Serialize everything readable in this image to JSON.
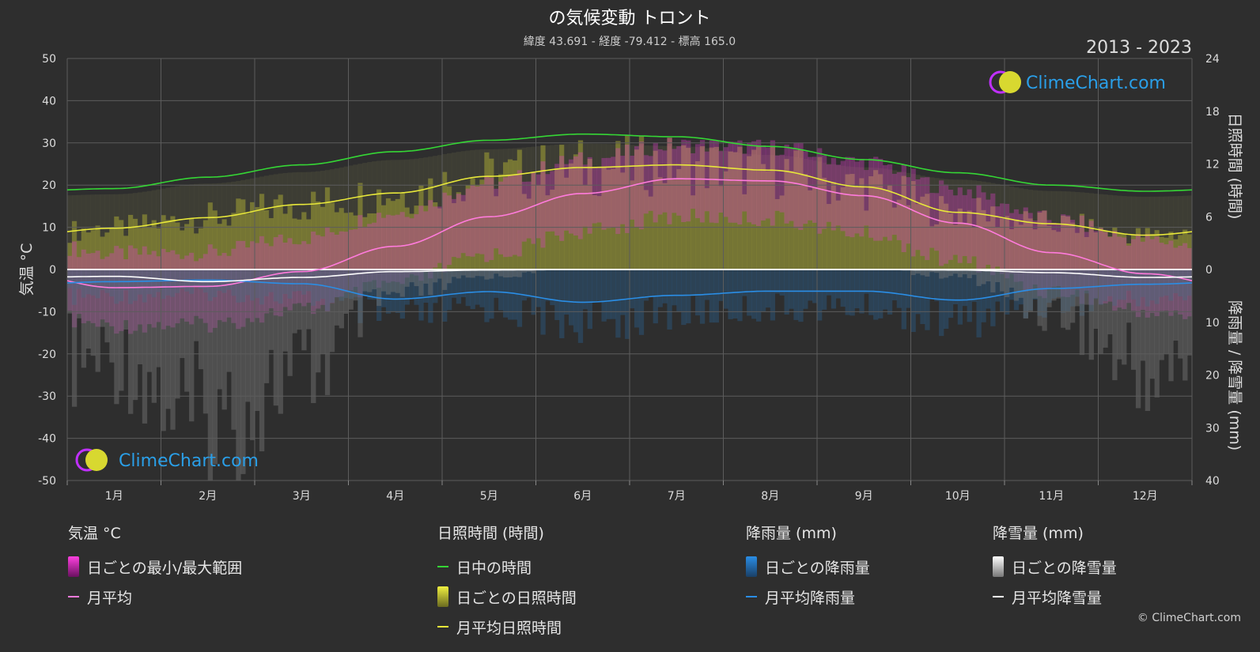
{
  "title": "の気候変動 トロント",
  "subtitle": "緯度 43.691 - 経度 -79.412 - 標高 165.0",
  "year_range": "2013 - 2023",
  "watermark": "ClimeChart.com",
  "copyright": "© ClimeChart.com",
  "colors": {
    "background": "#2e2e2e",
    "daylight": "#35d635",
    "sunshine": "#e8e83a",
    "temperature": "#ff7bdc",
    "temperature_range": "#e040c8",
    "rain": "#2a8ee6",
    "snow": "#ffffff",
    "brand": "#2a9fe8"
  },
  "legend": {
    "temperature": {
      "title": "気温 °C",
      "items": [
        "日ごとの最小/最大範囲",
        "月平均"
      ]
    },
    "sunshine": {
      "title": "日照時間 (時間)",
      "items": [
        "日中の時間",
        "日ごとの日照時間",
        "月平均日照時間"
      ]
    },
    "rain": {
      "title": "降雨量 (mm)",
      "items": [
        "日ごとの降雨量",
        "月平均降雨量"
      ]
    },
    "snow": {
      "title": "降雪量 (mm)",
      "items": [
        "日ごとの降雪量",
        "月平均降雪量"
      ]
    }
  },
  "chart_data": {
    "type": "line",
    "categories": [
      "1月",
      "2月",
      "3月",
      "4月",
      "5月",
      "6月",
      "7月",
      "8月",
      "9月",
      "10月",
      "11月",
      "12月"
    ],
    "y_left": {
      "label": "気温 °C",
      "range": [
        -50,
        50
      ],
      "ticks": [
        50,
        40,
        30,
        20,
        10,
        0,
        -10,
        -20,
        -30,
        -40,
        -50
      ]
    },
    "y_right_top": {
      "label": "日照時間 (時間)",
      "range": [
        0,
        24
      ],
      "ticks": [
        24,
        18,
        12,
        6,
        0
      ]
    },
    "y_right_bottom": {
      "label": "降雨量 / 降雪量 (mm)",
      "range": [
        0,
        40
      ],
      "ticks": [
        10,
        20,
        30,
        40
      ]
    },
    "series": [
      {
        "name": "日中の時間",
        "axis": "sunshine_hours",
        "values": [
          9.2,
          10.5,
          11.9,
          13.4,
          14.7,
          15.4,
          15.1,
          14.0,
          12.5,
          11.0,
          9.6,
          8.9
        ]
      },
      {
        "name": "月平均日照時間",
        "axis": "sunshine_hours",
        "values": [
          4.7,
          5.9,
          7.4,
          8.7,
          10.6,
          11.6,
          11.9,
          11.3,
          9.4,
          6.5,
          5.2,
          3.9
        ]
      },
      {
        "name": "月平均",
        "axis": "temperature_c",
        "values": [
          -4.3,
          -4.0,
          -0.5,
          5.5,
          12.5,
          18.0,
          21.5,
          21.0,
          17.5,
          11.0,
          4.0,
          -1.0
        ]
      },
      {
        "name": "月平均降雨量",
        "axis": "precip_mm",
        "values": [
          2.3,
          2.0,
          2.7,
          5.6,
          4.2,
          6.2,
          4.9,
          4.1,
          4.1,
          5.8,
          3.6,
          2.8
        ]
      },
      {
        "name": "月平均降雪量",
        "axis": "precip_mm",
        "values": [
          1.3,
          2.3,
          1.5,
          0.4,
          0.1,
          0.0,
          0.0,
          0.0,
          0.0,
          0.1,
          0.6,
          1.5
        ]
      }
    ],
    "grid": true
  }
}
